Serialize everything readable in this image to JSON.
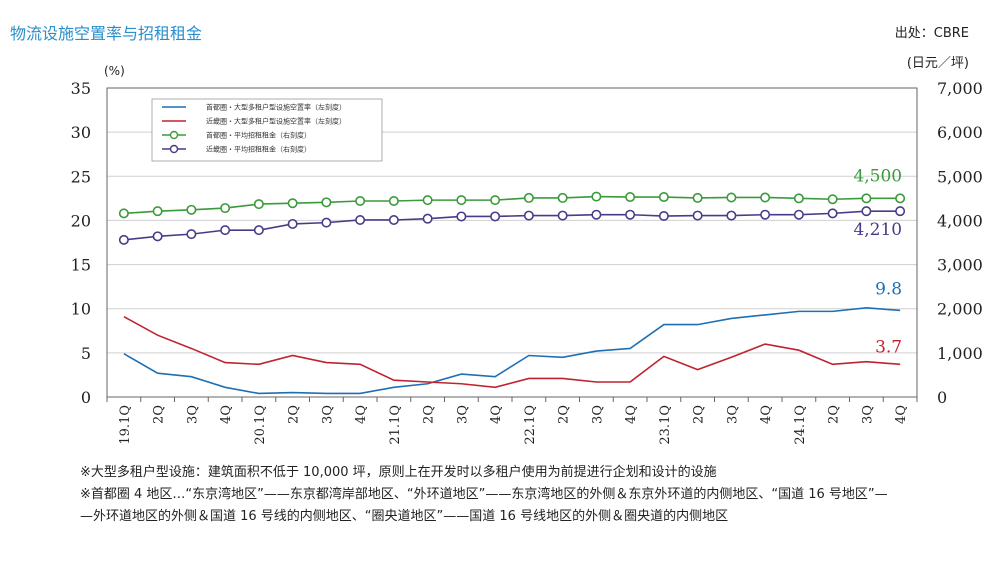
{
  "title": "物流设施空置率与招租租金",
  "source": "出处：CBRE",
  "unit_right": "(日元／坪)",
  "unit_left": "(%)",
  "notes": [
    "※大型多租户型设施：建筑面积不低于 10,000 坪，原则上在开发时以多租户使用为前提进行企划和设计的设施",
    "※首都圈 4 地区…“东京湾地区”——东京都湾岸部地区、“外环道地区”——东京湾地区的外侧＆东京外环道的内侧地区、“国道 16 号地区”—",
    "—外环道地区的外侧＆国道 16 号线的内侧地区、“圈央道地区”——国道 16 号线地区的外侧＆圈央道的内侧地区"
  ],
  "chart_data": {
    "type": "line",
    "categories": [
      "19.1Q",
      "2Q",
      "3Q",
      "4Q",
      "20.1Q",
      "2Q",
      "3Q",
      "4Q",
      "21.1Q",
      "2Q",
      "3Q",
      "4Q",
      "22.1Q",
      "2Q",
      "3Q",
      "4Q",
      "23.1Q",
      "2Q",
      "3Q",
      "4Q",
      "24.1Q",
      "2Q",
      "3Q",
      "4Q"
    ],
    "y_left": {
      "ylim": [
        0,
        35
      ],
      "ticks": [
        "0",
        "5",
        "10",
        "15",
        "20",
        "25",
        "30",
        "35"
      ]
    },
    "y_right": {
      "ylim": [
        0,
        7000
      ],
      "ticks": [
        "0",
        "1,000",
        "2,000",
        "3,000",
        "4,000",
        "5,000",
        "6,000",
        "7,000"
      ]
    },
    "series": [
      {
        "name": "首都圈・大型多租户型设施空置率（左刻度）",
        "axis": "left",
        "color": "#1f6fb5",
        "marker": false,
        "values": [
          4.9,
          2.7,
          2.3,
          1.1,
          0.4,
          0.5,
          0.4,
          0.4,
          1.1,
          1.5,
          2.6,
          2.3,
          4.7,
          4.5,
          5.2,
          5.5,
          8.2,
          8.2,
          8.9,
          9.3,
          9.7,
          9.7,
          10.1,
          9.8
        ],
        "end_label": "9.8"
      },
      {
        "name": "近畿圈・大型多租户型设施空置率（左刻度）",
        "axis": "left",
        "color": "#c0232e",
        "marker": false,
        "values": [
          9.1,
          7.0,
          5.5,
          3.9,
          3.7,
          4.7,
          3.9,
          3.7,
          1.9,
          1.7,
          1.5,
          1.1,
          2.1,
          2.1,
          1.7,
          1.7,
          4.6,
          3.1,
          4.5,
          6.0,
          5.3,
          3.7,
          4.0,
          3.7
        ],
        "end_label": "3.7"
      },
      {
        "name": "首都圈・平均招租租金（右刻度）",
        "axis": "right",
        "color": "#3a9b3a",
        "marker": true,
        "values": [
          4160,
          4210,
          4240,
          4280,
          4370,
          4390,
          4410,
          4440,
          4440,
          4460,
          4460,
          4460,
          4510,
          4510,
          4540,
          4530,
          4530,
          4510,
          4520,
          4520,
          4500,
          4480,
          4500,
          4500
        ],
        "end_label": "4,500"
      },
      {
        "name": "近畿圈・平均招租租金（右刻度）",
        "axis": "right",
        "color": "#4a3a8a",
        "marker": true,
        "values": [
          3560,
          3640,
          3690,
          3780,
          3780,
          3920,
          3950,
          4010,
          4010,
          4040,
          4090,
          4090,
          4110,
          4110,
          4130,
          4130,
          4100,
          4110,
          4110,
          4130,
          4130,
          4160,
          4210,
          4210
        ],
        "end_label": "4,210"
      }
    ]
  }
}
